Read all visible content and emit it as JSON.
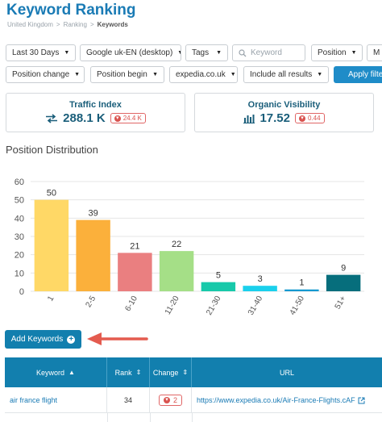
{
  "header": {
    "title": "Keyword Ranking",
    "breadcrumb": [
      "United Kingdom",
      "Ranking",
      "Keywords"
    ]
  },
  "filters": {
    "period": "Last 30 Days",
    "engine": "Google uk-EN (desktop)",
    "tags": "Tags",
    "search_placeholder": "Keyword",
    "position": "Position",
    "more_truncated": "M",
    "position_change": "Position change",
    "position_begin": "Position begin",
    "domain": "expedia.co.uk",
    "results": "Include all results",
    "apply": "Apply filte"
  },
  "kpis": {
    "traffic": {
      "title": "Traffic Index",
      "value": "288.1 K",
      "delta": "24.4 K",
      "icon": "swap-arrows-icon"
    },
    "visibility": {
      "title": "Organic Visibility",
      "value": "17.52",
      "delta": "0.44",
      "icon": "bar-chart-icon"
    }
  },
  "section_title": "Position Distribution",
  "chart_data": {
    "type": "bar",
    "categories": [
      "1",
      "2-5",
      "6-10",
      "11-20",
      "21-30",
      "31-40",
      "41-50",
      "51+"
    ],
    "values": [
      50,
      39,
      21,
      22,
      5,
      3,
      1,
      9
    ],
    "colors": [
      "#ffd866",
      "#fbb03b",
      "#ea7f80",
      "#a5df87",
      "#17c9aa",
      "#1ad0ec",
      "#1599d0",
      "#066e7c"
    ],
    "yticks": [
      0,
      10,
      20,
      30,
      40,
      50,
      60
    ],
    "ylim": [
      0,
      60
    ],
    "grid": true
  },
  "add_keywords": "Add Keywords",
  "table": {
    "headers": [
      "Keyword",
      "Rank",
      "Change",
      "URL"
    ],
    "rows": [
      {
        "keyword": "air france flight",
        "rank": "34",
        "change": "2",
        "url": "https://www.expedia.co.uk/Air-France-Flights.cAF"
      }
    ]
  },
  "colors": {
    "accent": "#127fae",
    "title": "#1a7bb5",
    "negative": "#d9534f"
  }
}
